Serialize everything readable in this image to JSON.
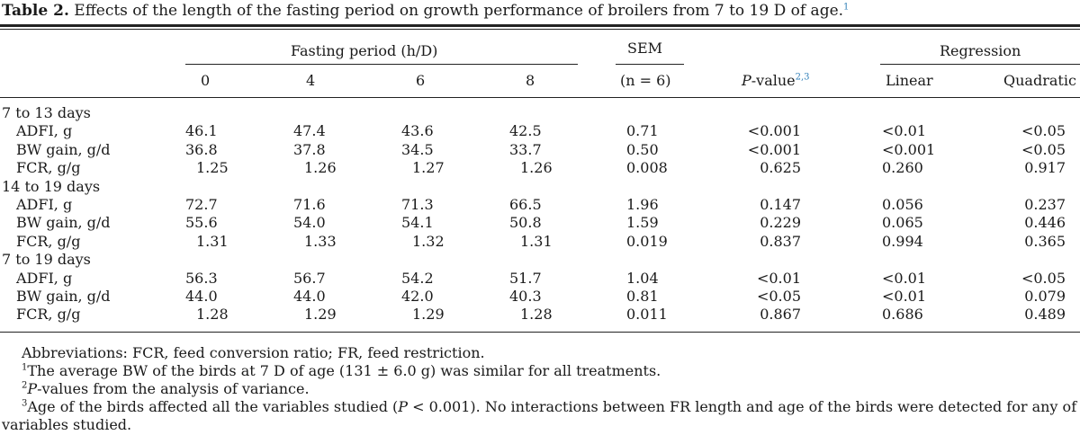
{
  "caption": {
    "label": "Table 2.",
    "text": " Effects of the length of the fasting period on growth performance of broilers from 7 to 19 D of age.",
    "note": "1"
  },
  "header": {
    "fasting_group": "Fasting period (h/D)",
    "sem_line1": "SEM",
    "sem_line2": "(n = 6)",
    "regression_group": "Regression",
    "periods": [
      "0",
      "4",
      "6",
      "8"
    ],
    "pvalue_label": "P",
    "pvalue_rest": "-value",
    "pvalue_note": "2,3",
    "linear": "Linear",
    "quadratic": "Quadratic"
  },
  "sections": [
    {
      "label": "7 to 13 days",
      "rows": [
        {
          "name": "ADFI, g",
          "v": [
            "46.1",
            "47.4",
            "43.6",
            "42.5"
          ],
          "sem": "0.71",
          "p": "<0.001",
          "lin": "<0.01",
          "quad": "<0.05"
        },
        {
          "name": "BW gain, g/d",
          "v": [
            "36.8",
            "37.8",
            "34.5",
            "33.7"
          ],
          "sem": "0.50",
          "p": "<0.001",
          "lin": "<0.001",
          "quad": "<0.05"
        },
        {
          "name": "FCR, g/g",
          "v": [
            "1.25",
            "1.26",
            "1.27",
            "1.26"
          ],
          "sem": "0.008",
          "p": "0.625",
          "lin": "0.260",
          "quad": "0.917"
        }
      ]
    },
    {
      "label": "14 to 19 days",
      "rows": [
        {
          "name": "ADFI, g",
          "v": [
            "72.7",
            "71.6",
            "71.3",
            "66.5"
          ],
          "sem": "1.96",
          "p": "0.147",
          "lin": "0.056",
          "quad": "0.237"
        },
        {
          "name": "BW gain, g/d",
          "v": [
            "55.6",
            "54.0",
            "54.1",
            "50.8"
          ],
          "sem": "1.59",
          "p": "0.229",
          "lin": "0.065",
          "quad": "0.446"
        },
        {
          "name": "FCR, g/g",
          "v": [
            "1.31",
            "1.33",
            "1.32",
            "1.31"
          ],
          "sem": "0.019",
          "p": "0.837",
          "lin": "0.994",
          "quad": "0.365"
        }
      ]
    },
    {
      "label": "7 to 19 days",
      "rows": [
        {
          "name": "ADFI, g",
          "v": [
            "56.3",
            "56.7",
            "54.2",
            "51.7"
          ],
          "sem": "1.04",
          "p": "<0.01",
          "lin": "<0.01",
          "quad": "<0.05"
        },
        {
          "name": "BW gain, g/d",
          "v": [
            "44.0",
            "44.0",
            "42.0",
            "40.3"
          ],
          "sem": "0.81",
          "p": "<0.05",
          "lin": "<0.01",
          "quad": "0.079"
        },
        {
          "name": "FCR, g/g",
          "v": [
            "1.28",
            "1.29",
            "1.29",
            "1.28"
          ],
          "sem": "0.011",
          "p": "0.867",
          "lin": "0.686",
          "quad": "0.489"
        }
      ]
    }
  ],
  "footnotes": {
    "abbrev": "Abbreviations: FCR, feed conversion ratio; FR, feed restriction.",
    "n1_mark": "1",
    "n1_text": "The average BW of the birds at 7 D of age (131 ± 6.0 g) was similar for all treatments.",
    "n2_mark": "2",
    "n2_italic": "P",
    "n2_text": "-values from the analysis of variance.",
    "n3_mark": "3",
    "n3_text_a": "Age of the birds affected all the variables studied (",
    "n3_italic": "P",
    "n3_text_b": " < 0.001). No interactions between FR length and age of the birds were detected for any of the",
    "n3_text_c": "variables studied."
  }
}
